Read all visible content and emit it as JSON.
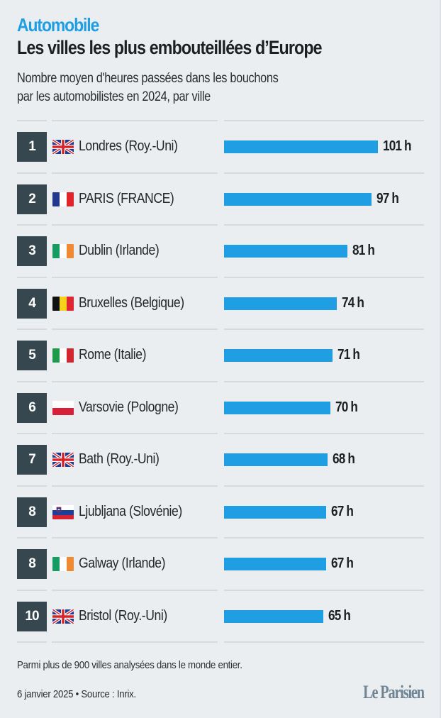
{
  "header": {
    "kicker": "Automobile",
    "title": "Les villes les plus embouteillées d’Europe",
    "subtitle_lines": [
      "Nombre moyen d'heures passées dans les bouchons",
      "par les automobilistes en 2024, par ville"
    ]
  },
  "colors": {
    "accent": "#1f9ee3",
    "rank_box": "#37474f",
    "background": "#ebeef1",
    "logo": "#6f8593"
  },
  "chart_data": {
    "type": "bar",
    "orientation": "horizontal",
    "title": "Les villes les plus embouteillées d’Europe",
    "subtitle": "Nombre moyen d'heures passées dans les bouchons par les automobilistes en 2024, par ville",
    "unit": "h",
    "xlim": [
      0,
      101
    ],
    "categories": [
      "Londres (Roy.-Uni)",
      "PARIS (FRANCE)",
      "Dublin (Irlande)",
      "Bruxelles (Belgique)",
      "Rome (Italie)",
      "Varsovie (Pologne)",
      "Bath (Roy.-Uni)",
      "Ljubljana (Slovénie)",
      "Galway (Irlande)",
      "Bristol (Roy.-Uni)"
    ],
    "values": [
      101,
      97,
      81,
      74,
      71,
      70,
      68,
      67,
      67,
      65
    ],
    "rows": [
      {
        "rank": "1",
        "flag": "uk-flag-icon",
        "city": "Londres (Roy.-Uni)",
        "value": 101,
        "label": "101 h"
      },
      {
        "rank": "2",
        "flag": "france-flag-icon",
        "city": "PARIS (FRANCE)",
        "value": 97,
        "label": "97 h"
      },
      {
        "rank": "3",
        "flag": "ireland-flag-icon",
        "city": "Dublin (Irlande)",
        "value": 81,
        "label": "81 h"
      },
      {
        "rank": "4",
        "flag": "belgium-flag-icon",
        "city": "Bruxelles (Belgique)",
        "value": 74,
        "label": "74 h"
      },
      {
        "rank": "5",
        "flag": "italy-flag-icon",
        "city": "Rome (Italie)",
        "value": 71,
        "label": "71 h"
      },
      {
        "rank": "6",
        "flag": "poland-flag-icon",
        "city": "Varsovie (Pologne)",
        "value": 70,
        "label": "70 h"
      },
      {
        "rank": "7",
        "flag": "uk-flag-icon",
        "city": "Bath (Roy.-Uni)",
        "value": 68,
        "label": "68 h"
      },
      {
        "rank": "8",
        "flag": "slovenia-flag-icon",
        "city": "Ljubljana (Slovénie)",
        "value": 67,
        "label": "67 h"
      },
      {
        "rank": "8",
        "flag": "ireland-flag-icon",
        "city": "Galway (Irlande)",
        "value": 67,
        "label": "67 h"
      },
      {
        "rank": "10",
        "flag": "uk-flag-icon",
        "city": "Bristol (Roy.-Uni)",
        "value": 65,
        "label": "65 h"
      }
    ]
  },
  "footer": {
    "note": "Parmi plus de 900 villes analysées dans le monde entier.",
    "source": "6 janvier 2025 • Source : Inrix.",
    "logo": "Le Parisien"
  }
}
